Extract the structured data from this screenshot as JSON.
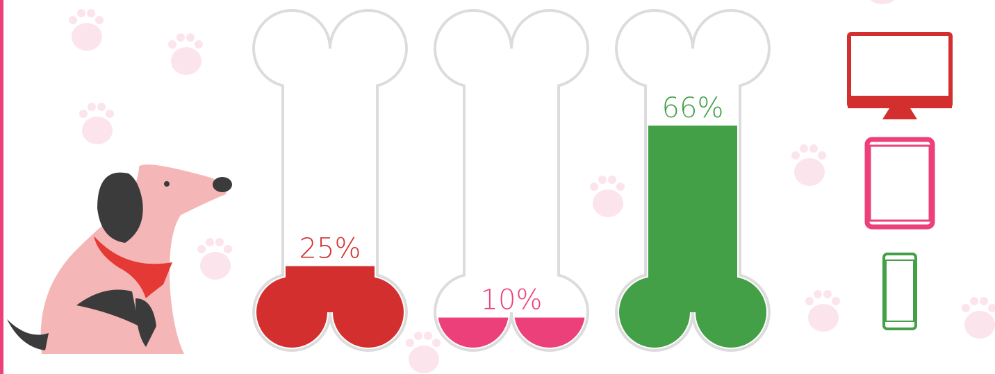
{
  "chart_data": {
    "type": "bone-gauge",
    "values": [
      25,
      10,
      66
    ],
    "value_labels": [
      "25%",
      "10%",
      "66%"
    ],
    "colors": [
      "#d32f2f",
      "#ec407a",
      "#43a047"
    ],
    "ylim": [
      0,
      100
    ]
  }
}
